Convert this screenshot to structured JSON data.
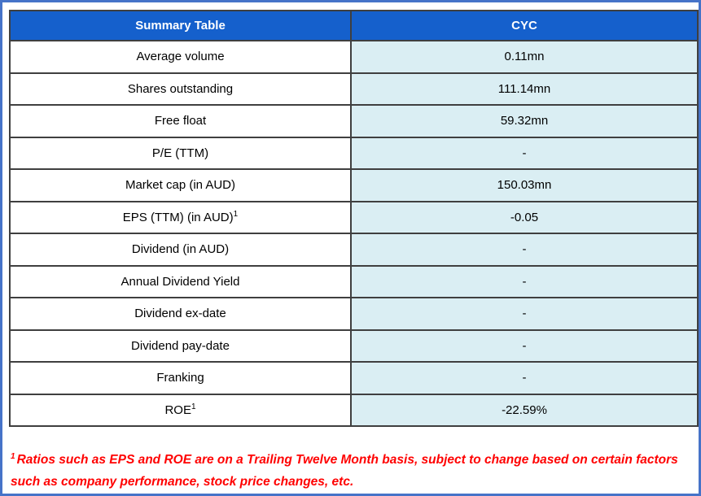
{
  "colors": {
    "header_bg": "#1560CC",
    "header_text": "#FFFFFF",
    "value_cell_bg": "#DAEEF3",
    "label_cell_bg": "#FFFFFF",
    "cell_border": "#3F3F3F",
    "outer_frame": "#4673C8",
    "footnote_text": "#FF0000"
  },
  "table": {
    "header": {
      "left": "Summary Table",
      "right": "CYC"
    },
    "rows": [
      {
        "label": "Average volume",
        "sup": "",
        "value": "0.11mn"
      },
      {
        "label": "Shares outstanding",
        "sup": "",
        "value": "111.14mn"
      },
      {
        "label": "Free float",
        "sup": "",
        "value": "59.32mn"
      },
      {
        "label": "P/E (TTM)",
        "sup": "",
        "value": "-"
      },
      {
        "label": "Market cap (in AUD)",
        "sup": "",
        "value": "150.03mn"
      },
      {
        "label": "EPS (TTM) (in AUD)",
        "sup": "1",
        "value": "-0.05"
      },
      {
        "label": "Dividend (in AUD)",
        "sup": "",
        "value": "-"
      },
      {
        "label": "Annual Dividend Yield",
        "sup": "",
        "value": "-"
      },
      {
        "label": "Dividend ex-date",
        "sup": "",
        "value": "-"
      },
      {
        "label": "Dividend pay-date",
        "sup": "",
        "value": "-"
      },
      {
        "label": "Franking",
        "sup": "",
        "value": "-"
      },
      {
        "label": "ROE",
        "sup": "1",
        "value": "-22.59%"
      }
    ]
  },
  "footnote": {
    "sup": "1",
    "text": "Ratios such as EPS and ROE are on a Trailing Twelve Month basis, subject to change based on certain factors such as company performance, stock price changes, etc."
  },
  "chart_data": {
    "type": "table",
    "title": "Summary Table",
    "columns": [
      "Summary Table",
      "CYC"
    ],
    "rows": [
      [
        "Average volume",
        "0.11mn"
      ],
      [
        "Shares outstanding",
        "111.14mn"
      ],
      [
        "Free float",
        "59.32mn"
      ],
      [
        "P/E (TTM)",
        "-"
      ],
      [
        "Market cap (in AUD)",
        "150.03mn"
      ],
      [
        "EPS (TTM) (in AUD)¹",
        "-0.05"
      ],
      [
        "Dividend (in AUD)",
        "-"
      ],
      [
        "Annual Dividend Yield",
        "-"
      ],
      [
        "Dividend ex-date",
        "-"
      ],
      [
        "Dividend pay-date",
        "-"
      ],
      [
        "Franking",
        "-"
      ],
      [
        "ROE¹",
        "-22.59%"
      ]
    ],
    "footnote": "¹ Ratios such as EPS and ROE are on a Trailing Twelve Month basis, subject to change based on certain factors such as company performance, stock price changes, etc."
  }
}
